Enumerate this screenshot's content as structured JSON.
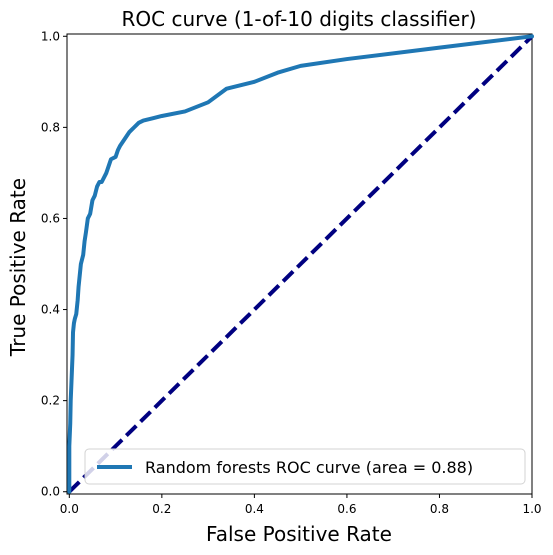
{
  "chart_data": {
    "type": "line",
    "title": "ROC curve (1-of-10 digits classifier)",
    "xlabel": "False Positive Rate",
    "ylabel": "True Positive Rate",
    "xlim": [
      -0.005,
      1.0
    ],
    "ylim": [
      -0.005,
      1.005
    ],
    "x_ticks": [
      0.0,
      0.2,
      0.4,
      0.6,
      0.8,
      1.0
    ],
    "x_tick_labels": [
      "0.0",
      "0.2",
      "0.4",
      "0.6",
      "0.8",
      "1.0"
    ],
    "y_ticks": [
      0.0,
      0.2,
      0.4,
      0.6,
      0.8,
      1.0
    ],
    "y_tick_labels": [
      "0.0",
      "0.2",
      "0.4",
      "0.6",
      "0.8",
      "1.0"
    ],
    "grid": false,
    "legend_position": "lower-right",
    "series": [
      {
        "name": "Random forests ROC curve (area = 0.88)",
        "color": "#1f77b4",
        "style": "solid",
        "x": [
          0.0,
          0.0,
          0.002,
          0.003,
          0.005,
          0.007,
          0.008,
          0.01,
          0.012,
          0.015,
          0.018,
          0.02,
          0.025,
          0.03,
          0.033,
          0.036,
          0.04,
          0.045,
          0.05,
          0.055,
          0.06,
          0.065,
          0.07,
          0.075,
          0.08,
          0.09,
          0.1,
          0.105,
          0.11,
          0.12,
          0.13,
          0.14,
          0.15,
          0.16,
          0.18,
          0.2,
          0.25,
          0.3,
          0.34,
          0.4,
          0.45,
          0.5,
          0.6,
          0.8,
          1.0
        ],
        "y": [
          0.0,
          0.1,
          0.15,
          0.2,
          0.25,
          0.3,
          0.35,
          0.37,
          0.38,
          0.39,
          0.42,
          0.45,
          0.5,
          0.52,
          0.55,
          0.57,
          0.6,
          0.61,
          0.64,
          0.65,
          0.67,
          0.68,
          0.68,
          0.69,
          0.7,
          0.73,
          0.735,
          0.75,
          0.76,
          0.775,
          0.79,
          0.8,
          0.81,
          0.815,
          0.82,
          0.825,
          0.835,
          0.855,
          0.885,
          0.9,
          0.92,
          0.935,
          0.95,
          0.975,
          1.0
        ]
      },
      {
        "name": "",
        "color": "#000080",
        "style": "dashed",
        "x": [
          0.0,
          1.0
        ],
        "y": [
          0.0,
          1.0
        ]
      }
    ]
  }
}
